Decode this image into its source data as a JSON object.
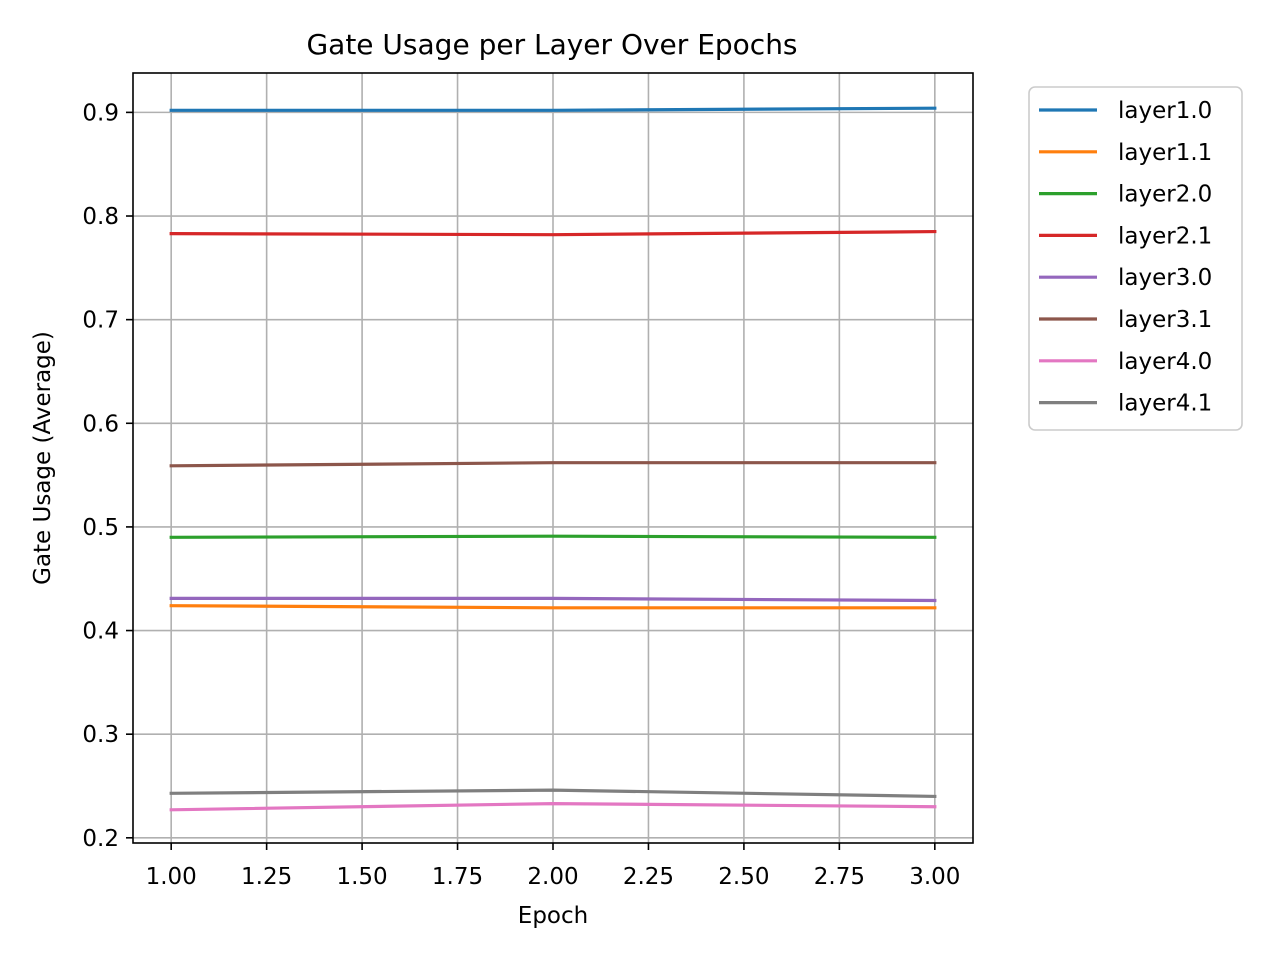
{
  "chart_data": {
    "type": "line",
    "title": "Gate Usage per Layer Over Epochs",
    "xlabel": "Epoch",
    "ylabel": "Gate Usage (Average)",
    "x": [
      1,
      2,
      3
    ],
    "xlim": [
      0.9,
      3.1
    ],
    "ylim": [
      0.195,
      0.938
    ],
    "xticks": [
      1.0,
      1.25,
      1.5,
      1.75,
      2.0,
      2.25,
      2.5,
      2.75,
      3.0
    ],
    "xtick_labels": [
      "1.00",
      "1.25",
      "1.50",
      "1.75",
      "2.00",
      "2.25",
      "2.50",
      "2.75",
      "3.00"
    ],
    "yticks": [
      0.2,
      0.3,
      0.4,
      0.5,
      0.6,
      0.7,
      0.8,
      0.9
    ],
    "ytick_labels": [
      "0.2",
      "0.3",
      "0.4",
      "0.5",
      "0.6",
      "0.7",
      "0.8",
      "0.9"
    ],
    "grid": true,
    "legend_position": "outside-top-right",
    "series": [
      {
        "name": "layer1.0",
        "color": "#1f77b4",
        "values": [
          0.902,
          0.902,
          0.904
        ]
      },
      {
        "name": "layer1.1",
        "color": "#ff7f0e",
        "values": [
          0.424,
          0.422,
          0.422
        ]
      },
      {
        "name": "layer2.0",
        "color": "#2ca02c",
        "values": [
          0.49,
          0.491,
          0.49
        ]
      },
      {
        "name": "layer2.1",
        "color": "#d62728",
        "values": [
          0.783,
          0.782,
          0.785
        ]
      },
      {
        "name": "layer3.0",
        "color": "#9467bd",
        "values": [
          0.431,
          0.431,
          0.429
        ]
      },
      {
        "name": "layer3.1",
        "color": "#8c564b",
        "values": [
          0.559,
          0.562,
          0.562
        ]
      },
      {
        "name": "layer4.0",
        "color": "#e377c2",
        "values": [
          0.227,
          0.233,
          0.23
        ]
      },
      {
        "name": "layer4.1",
        "color": "#7f7f7f",
        "values": [
          0.243,
          0.246,
          0.24
        ]
      }
    ]
  }
}
